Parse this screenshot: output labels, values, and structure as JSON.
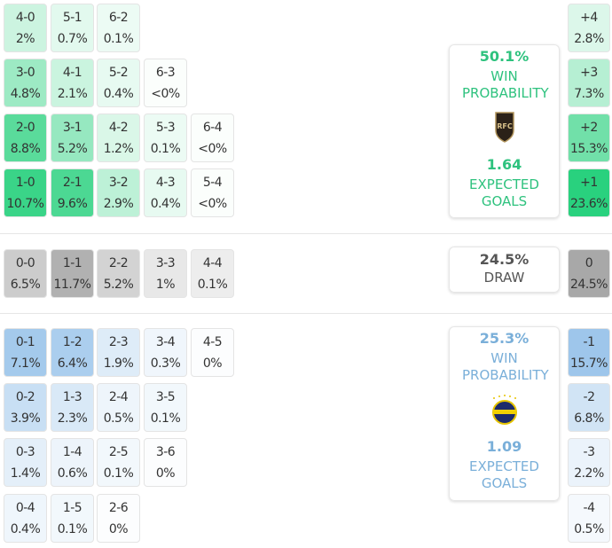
{
  "colors": {
    "home": "#26d07c",
    "away": "#6eaae1",
    "draw": "#a8a8a8",
    "home_text": "#2ec27e",
    "away_text": "#7aafd9",
    "draw_text": "#555555"
  },
  "home_grid": [
    [
      {
        "score": "4-0",
        "pct": "2%"
      },
      {
        "score": "5-1",
        "pct": "0.7%"
      },
      {
        "score": "6-2",
        "pct": "0.1%"
      }
    ],
    [
      {
        "score": "3-0",
        "pct": "4.8%"
      },
      {
        "score": "4-1",
        "pct": "2.1%"
      },
      {
        "score": "5-2",
        "pct": "0.4%"
      },
      {
        "score": "6-3",
        "pct": "<0%"
      }
    ],
    [
      {
        "score": "2-0",
        "pct": "8.8%"
      },
      {
        "score": "3-1",
        "pct": "5.2%"
      },
      {
        "score": "4-2",
        "pct": "1.2%"
      },
      {
        "score": "5-3",
        "pct": "0.1%"
      },
      {
        "score": "6-4",
        "pct": "<0%"
      }
    ],
    [
      {
        "score": "1-0",
        "pct": "10.7%"
      },
      {
        "score": "2-1",
        "pct": "9.6%"
      },
      {
        "score": "3-2",
        "pct": "2.9%"
      },
      {
        "score": "4-3",
        "pct": "0.4%"
      },
      {
        "score": "5-4",
        "pct": "<0%"
      }
    ]
  ],
  "draw_grid": [
    [
      {
        "score": "0-0",
        "pct": "6.5%"
      },
      {
        "score": "1-1",
        "pct": "11.7%"
      },
      {
        "score": "2-2",
        "pct": "5.2%"
      },
      {
        "score": "3-3",
        "pct": "1%"
      },
      {
        "score": "4-4",
        "pct": "0.1%"
      }
    ]
  ],
  "away_grid": [
    [
      {
        "score": "0-1",
        "pct": "7.1%"
      },
      {
        "score": "1-2",
        "pct": "6.4%"
      },
      {
        "score": "2-3",
        "pct": "1.9%"
      },
      {
        "score": "3-4",
        "pct": "0.3%"
      },
      {
        "score": "4-5",
        "pct": "0%"
      }
    ],
    [
      {
        "score": "0-2",
        "pct": "3.9%"
      },
      {
        "score": "1-3",
        "pct": "2.3%"
      },
      {
        "score": "2-4",
        "pct": "0.5%"
      },
      {
        "score": "3-5",
        "pct": "0.1%"
      }
    ],
    [
      {
        "score": "0-3",
        "pct": "1.4%"
      },
      {
        "score": "1-4",
        "pct": "0.6%"
      },
      {
        "score": "2-5",
        "pct": "0.1%"
      },
      {
        "score": "3-6",
        "pct": "0%"
      }
    ],
    [
      {
        "score": "0-4",
        "pct": "0.4%"
      },
      {
        "score": "1-5",
        "pct": "0.1%"
      },
      {
        "score": "2-6",
        "pct": "0%"
      }
    ]
  ],
  "home_margins": [
    {
      "label": "+4",
      "pct": "2.8%"
    },
    {
      "label": "+3",
      "pct": "7.3%"
    },
    {
      "label": "+2",
      "pct": "15.3%"
    },
    {
      "label": "+1",
      "pct": "23.6%"
    }
  ],
  "draw_margin": [
    {
      "label": "0",
      "pct": "24.5%"
    }
  ],
  "away_margins": [
    {
      "label": "-1",
      "pct": "15.7%"
    },
    {
      "label": "-2",
      "pct": "6.8%"
    },
    {
      "label": "-3",
      "pct": "2.2%"
    },
    {
      "label": "-4",
      "pct": "0.5%"
    }
  ],
  "home_card": {
    "win_pct": "50.1%",
    "win_label": "WIN PROBABILITY",
    "logo_text": "RFC",
    "xg": "1.64",
    "xg_label": "EXPECTED GOALS"
  },
  "draw_card": {
    "pct": "24.5%",
    "label": "DRAW"
  },
  "away_card": {
    "win_pct": "25.3%",
    "win_label": "WIN PROBABILITY",
    "xg": "1.09",
    "xg_label": "EXPECTED GOALS"
  }
}
